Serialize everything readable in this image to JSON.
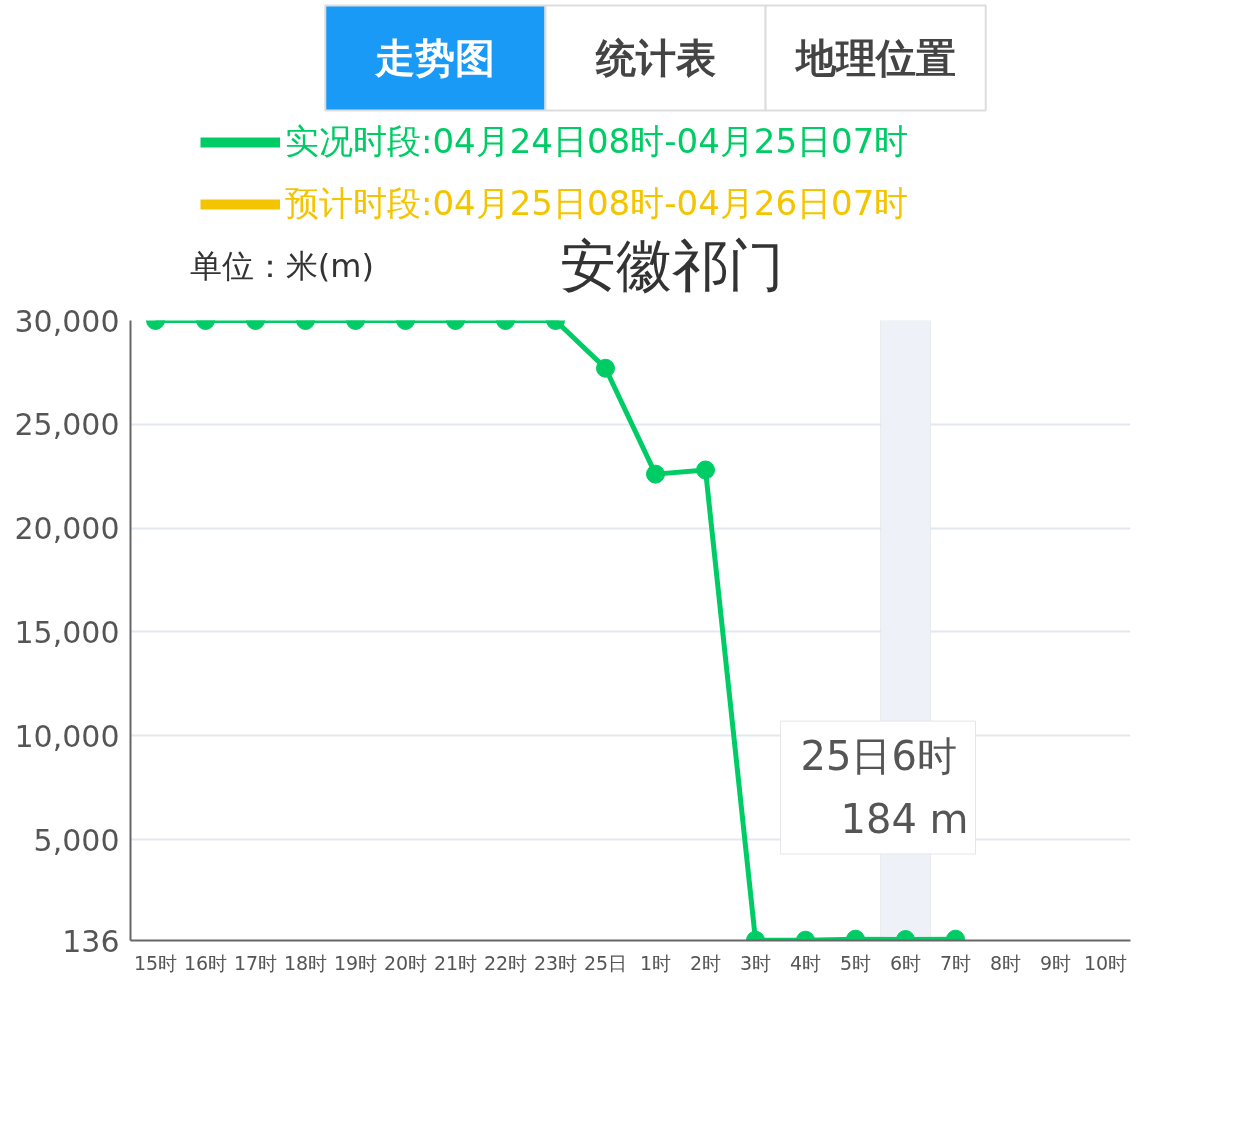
{
  "chart_data": {
    "type": "line",
    "title": "安徽祁门",
    "ylabel": "单位：米(m)",
    "categories": [
      "15时",
      "16时",
      "17时",
      "18时",
      "19时",
      "20时",
      "21时",
      "22时",
      "23时",
      "25日",
      "1时",
      "2时",
      "3时",
      "4时",
      "5时",
      "6时",
      "7时",
      "8时",
      "9时",
      "10时"
    ],
    "series": [
      {
        "name": "实况时段:04月24日08时-04月25日07时",
        "color": "#00cc66",
        "values": [
          30000,
          30000,
          30000,
          30000,
          30000,
          30000,
          30000,
          30000,
          30000,
          27700,
          22600,
          22800,
          150,
          150,
          200,
          184,
          200,
          null,
          null,
          null
        ]
      },
      {
        "name": "预计时段:04月25日08时-04月26日07时",
        "color": "#f5c400",
        "values": [
          null,
          null,
          null,
          null,
          null,
          null,
          null,
          null,
          null,
          null,
          null,
          null,
          null,
          null,
          null,
          null,
          null,
          null,
          null,
          null
        ]
      }
    ],
    "ylim": [
      136,
      30000
    ],
    "yticks": [
      136,
      {
        "value": 5000,
        "label": "5,000"
      },
      {
        "value": 10000,
        "label": "10,000"
      },
      {
        "value": 15000,
        "label": "15,000"
      },
      {
        "value": 20000,
        "label": "20,000"
      },
      {
        "value": 25000,
        "label": "25,000"
      },
      {
        "value": 30000,
        "label": "30,000"
      }
    ],
    "grid": "y",
    "legend": "top",
    "marker": "circle",
    "line_style": "solid",
    "bands": [
      {
        "axis": "x",
        "from": "6时",
        "to": "6时",
        "color": "#eef1f8"
      }
    ],
    "annotations": [
      "走势图",
      "统计表",
      "地理位置",
      "25日6时",
      "184 m"
    ]
  }
}
